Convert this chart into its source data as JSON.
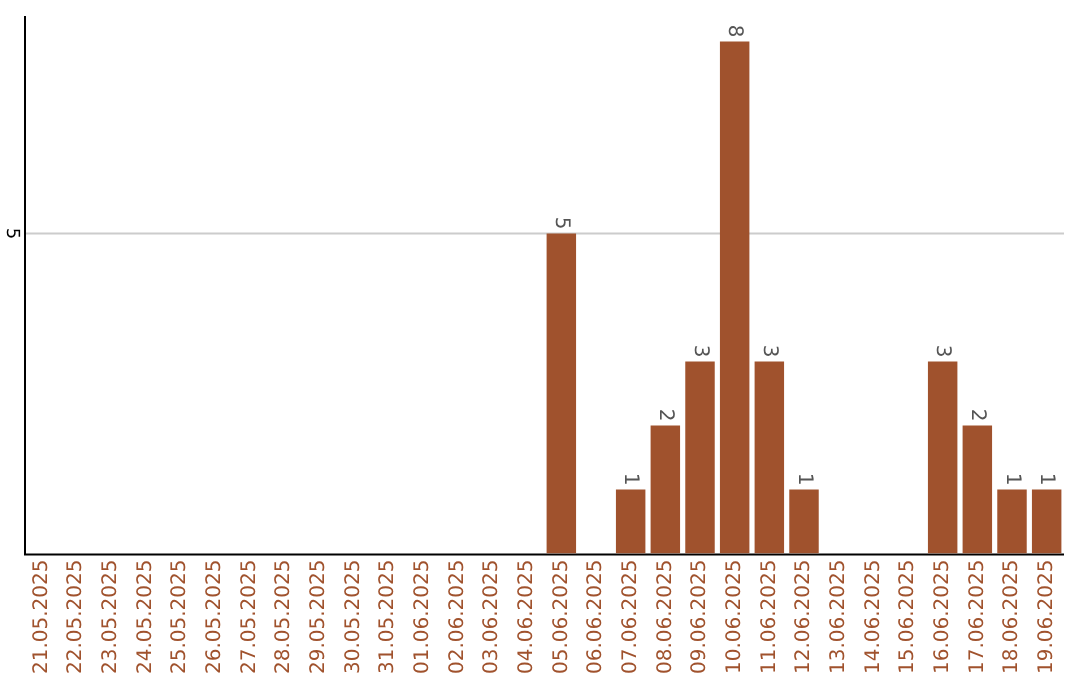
{
  "chart_data": {
    "type": "bar",
    "categories": [
      "21.05.2025",
      "22.05.2025",
      "23.05.2025",
      "24.05.2025",
      "25.05.2025",
      "26.05.2025",
      "27.05.2025",
      "28.05.2025",
      "29.05.2025",
      "30.05.2025",
      "31.05.2025",
      "01.06.2025",
      "02.06.2025",
      "03.06.2025",
      "04.06.2025",
      "05.06.2025",
      "06.06.2025",
      "07.06.2025",
      "08.06.2025",
      "09.06.2025",
      "10.06.2025",
      "11.06.2025",
      "12.06.2025",
      "13.06.2025",
      "14.06.2025",
      "15.06.2025",
      "16.06.2025",
      "17.06.2025",
      "18.06.2025",
      "19.06.2025"
    ],
    "values": [
      null,
      null,
      null,
      null,
      null,
      null,
      null,
      null,
      null,
      null,
      null,
      null,
      null,
      null,
      null,
      5,
      null,
      1,
      2,
      3,
      8,
      3,
      1,
      null,
      null,
      null,
      3,
      2,
      1,
      1
    ],
    "data_labels": true,
    "color": "#a0522d",
    "ylim": [
      0,
      8.4
    ],
    "ref_lines": [
      {
        "axis": "y",
        "value": 5,
        "label": "5",
        "color": "#cccccc"
      }
    ],
    "legend": false
  }
}
